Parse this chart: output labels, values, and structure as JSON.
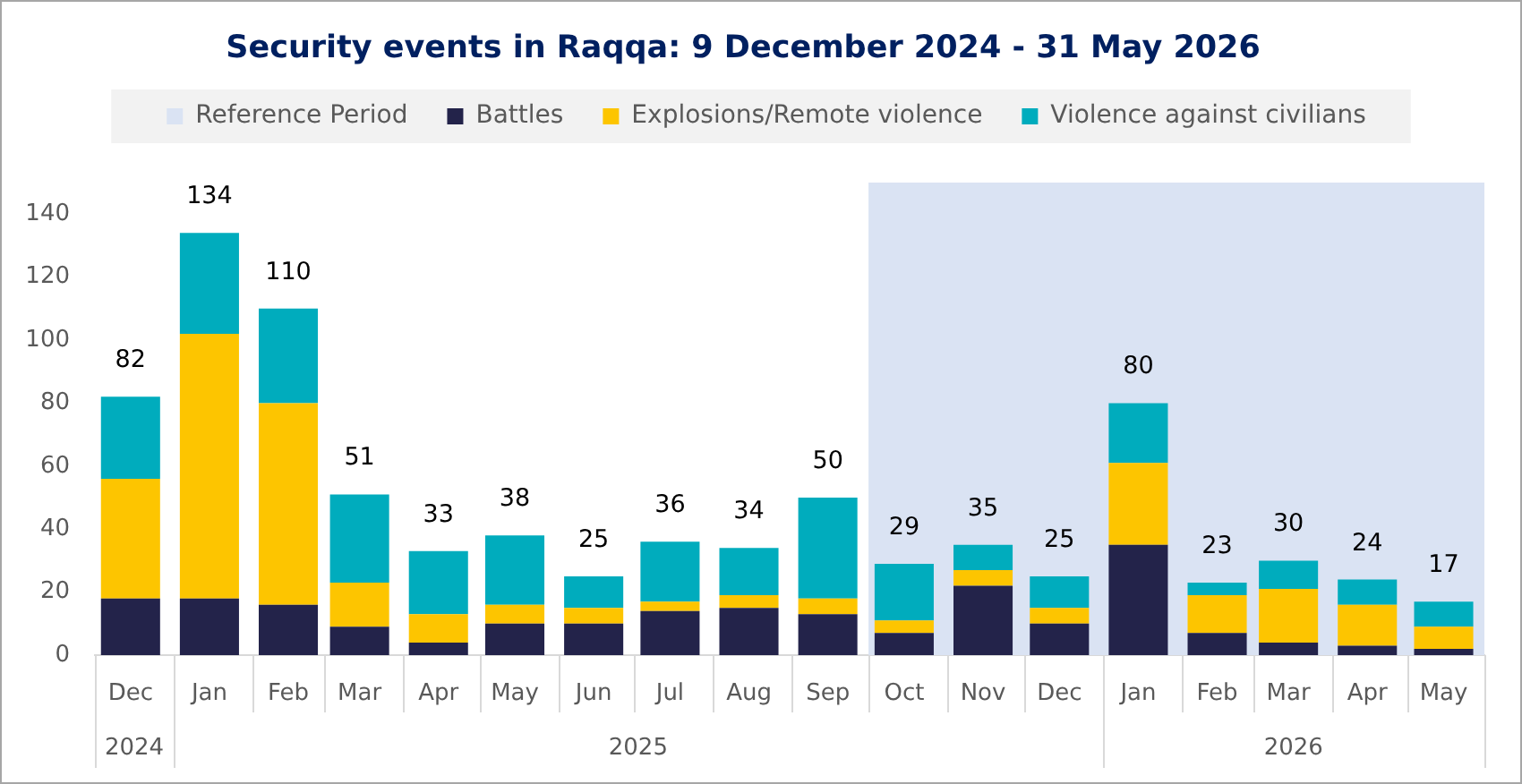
{
  "chart_data": {
    "type": "bar",
    "title": "Security events in Raqqa: 9 December 2024 - 31 May 2026",
    "x": [
      "2024-12-15",
      "2025-01-15",
      "2025-02-15",
      "2025-03-15",
      "2025-04-15",
      "2025-05-15",
      "2025-06-15",
      "2025-07-15",
      "2025-08-15",
      "2025-09-15",
      "2025-10-15",
      "2025-11-15",
      "2025-12-15",
      "2026-01-15",
      "2026-02-15",
      "2026-03-15",
      "2026-04-15",
      "2026-05-15"
    ],
    "xlim": [
      "2024-12-01",
      "2026-05-31"
    ],
    "xticks": [
      {
        "value": "2024-12-15",
        "label": "Dec"
      },
      {
        "value": "2025-01-15",
        "label": "Jan"
      },
      {
        "value": "2025-02-15",
        "label": "Feb"
      },
      {
        "value": "2025-03-15",
        "label": "Mar"
      },
      {
        "value": "2025-04-15",
        "label": "Apr"
      },
      {
        "value": "2025-05-15",
        "label": "May"
      },
      {
        "value": "2025-06-15",
        "label": "Jun"
      },
      {
        "value": "2025-07-15",
        "label": "Jul"
      },
      {
        "value": "2025-08-15",
        "label": "Aug"
      },
      {
        "value": "2025-09-15",
        "label": "Sep"
      },
      {
        "value": "2025-10-15",
        "label": "Oct"
      },
      {
        "value": "2025-11-15",
        "label": "Nov"
      },
      {
        "value": "2025-12-15",
        "label": "Dec"
      },
      {
        "value": "2026-01-15",
        "label": "Jan"
      },
      {
        "value": "2026-02-15",
        "label": "Feb"
      },
      {
        "value": "2026-03-15",
        "label": "Mar"
      },
      {
        "value": "2026-04-15",
        "label": "Apr"
      },
      {
        "value": "2026-05-15",
        "label": "May"
      }
    ],
    "series": [
      {
        "name": "Battles",
        "color": "#23234a",
        "values": [
          18,
          18,
          16,
          9,
          4,
          10,
          10,
          14,
          15,
          13,
          7,
          22,
          10,
          35,
          7,
          4,
          3,
          2
        ]
      },
      {
        "name": "Explosions/Remote violence",
        "color": "#fdc500",
        "values": [
          38,
          84,
          64,
          14,
          9,
          6,
          5,
          3,
          4,
          5,
          4,
          5,
          5,
          26,
          12,
          17,
          13,
          7
        ]
      },
      {
        "name": "Violence against civilians",
        "color": "#00acbd",
        "values": [
          26,
          32,
          30,
          28,
          20,
          22,
          10,
          19,
          15,
          32,
          18,
          8,
          10,
          19,
          4,
          9,
          8,
          8
        ]
      }
    ],
    "stacked": true,
    "totals": [
      "82",
      "134",
      "110",
      "51",
      "33",
      "38",
      "25",
      "36",
      "34",
      "50",
      "29",
      "35",
      "25",
      "80",
      "23",
      "30",
      "24",
      "17"
    ],
    "ylim": [
      0,
      150
    ],
    "yticks": [
      0,
      20,
      40,
      60,
      80,
      100,
      120,
      140
    ],
    "bands": [
      {
        "axis": "x",
        "from": "2025-10-01",
        "to": "2026-05-31",
        "label": "Reference Period",
        "color": "#dae3f3"
      }
    ],
    "annotations": [
      "2024",
      "2025",
      "2026"
    ],
    "legend": "top"
  }
}
